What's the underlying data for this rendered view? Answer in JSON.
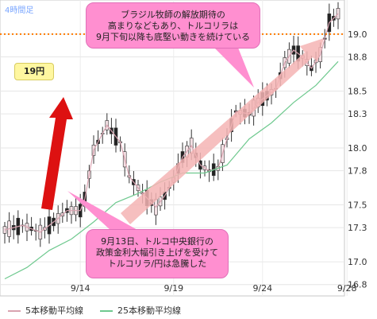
{
  "timeframe_label": "4時間足",
  "badge_label": "19円",
  "callout_top": [
    "ブラジル牧師の解放期待の",
    "高まりなどもあり、トルコリラは",
    "9月下旬以降も底堅い動きを続けている"
  ],
  "callout_bottom": [
    "9月13日、トルコ中央銀行の",
    "政策金利大幅引き上げを受けて",
    "トルコリラ/円は急騰した"
  ],
  "legend": [
    {
      "label": "5本移動平均線",
      "color": "#d9a3b0"
    },
    {
      "label": "25本移動平均線",
      "color": "#6fc98f"
    }
  ],
  "colors": {
    "up_candle": "#f2dfe3",
    "down_candle": "#222222",
    "reference_line": "#ff7a00",
    "up_arrow": "#dd1111",
    "trend_arrow": "#f4b4b4"
  },
  "chart_data": {
    "type": "candlestick",
    "x_ticks": [
      "9/14",
      "9/19",
      "9/24",
      "9/28"
    ],
    "y_ticks": [
      16.8,
      17.0,
      17.3,
      17.5,
      17.8,
      18.0,
      18.3,
      18.5,
      18.8,
      19.0
    ],
    "ylim": [
      16.7,
      19.3
    ],
    "reference_line": 19.0,
    "ma_short": [
      [
        0,
        17.28
      ],
      [
        4,
        17.32
      ],
      [
        8,
        17.26
      ],
      [
        12,
        17.38
      ],
      [
        14,
        17.45
      ],
      [
        17,
        17.45
      ],
      [
        18,
        17.55
      ],
      [
        20,
        17.98
      ],
      [
        23,
        18.2
      ],
      [
        26,
        18.05
      ],
      [
        28,
        17.75
      ],
      [
        31,
        17.6
      ],
      [
        34,
        17.48
      ],
      [
        36,
        17.58
      ],
      [
        38,
        17.72
      ],
      [
        40,
        17.92
      ],
      [
        42,
        18.02
      ],
      [
        44,
        17.85
      ],
      [
        46,
        17.8
      ],
      [
        48,
        17.82
      ],
      [
        50,
        18.08
      ],
      [
        52,
        18.32
      ],
      [
        55,
        18.3
      ],
      [
        57,
        18.4
      ],
      [
        59,
        18.46
      ],
      [
        61,
        18.52
      ],
      [
        63,
        18.75
      ],
      [
        65,
        18.86
      ],
      [
        67,
        18.8
      ],
      [
        69,
        18.7
      ],
      [
        71,
        18.82
      ],
      [
        73,
        19.1
      ],
      [
        75,
        19.18
      ]
    ],
    "ma_long": [
      [
        0,
        16.85
      ],
      [
        5,
        16.95
      ],
      [
        10,
        17.1
      ],
      [
        15,
        17.2
      ],
      [
        20,
        17.35
      ],
      [
        25,
        17.52
      ],
      [
        30,
        17.6
      ],
      [
        35,
        17.7
      ],
      [
        40,
        17.78
      ],
      [
        45,
        17.78
      ],
      [
        50,
        17.85
      ],
      [
        55,
        18.08
      ],
      [
        60,
        18.22
      ],
      [
        65,
        18.4
      ],
      [
        70,
        18.55
      ],
      [
        75,
        18.76
      ]
    ]
  }
}
